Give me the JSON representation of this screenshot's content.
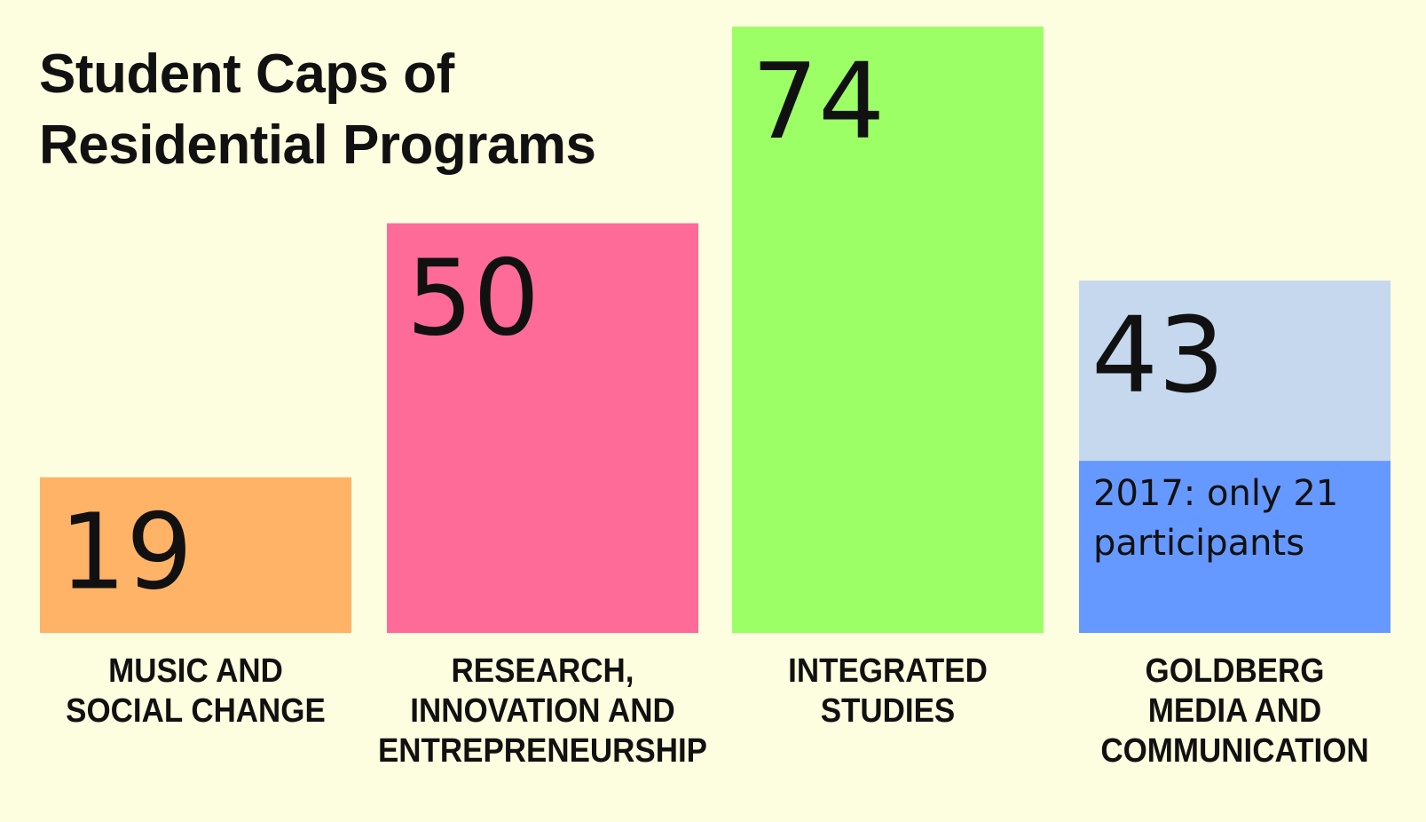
{
  "chart_data": {
    "type": "bar",
    "title": [
      "Student Caps of",
      "Residential Programs"
    ],
    "categories": [
      [
        "MUSIC AND",
        "SOCIAL CHANGE"
      ],
      [
        "RESEARCH,",
        "INNOVATION AND",
        "ENTREPRENEURSHIP"
      ],
      [
        "INTEGRATED",
        "STUDIES"
      ],
      [
        "GOLDBERG",
        "MEDIA AND",
        "COMMUNICATION"
      ]
    ],
    "values": [
      19,
      50,
      74,
      43
    ],
    "colors": [
      "#FFB366",
      "#FF6B98",
      "#9CFF66",
      "#C5D8EE"
    ],
    "annotation": {
      "category_index": 3,
      "value": 21,
      "color": "#6699FF",
      "text": [
        "2017: only 21",
        "participants"
      ]
    },
    "ylim": [
      0,
      74
    ],
    "xlabel": "",
    "ylabel": ""
  }
}
